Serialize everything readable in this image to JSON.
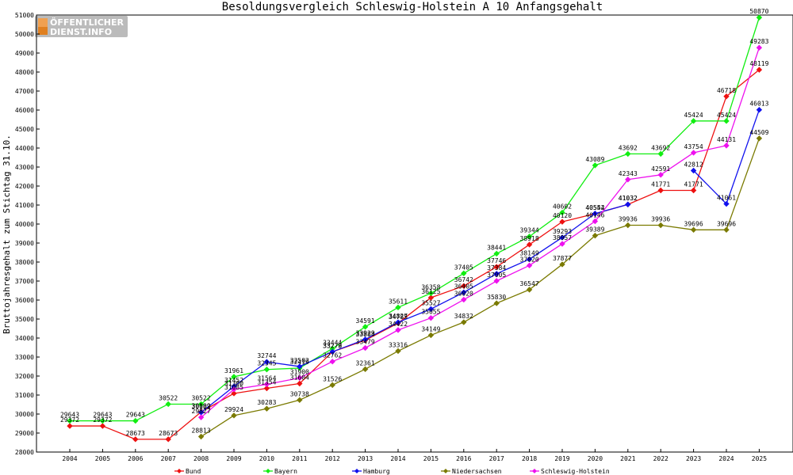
{
  "brand": {
    "line1": "ÖFFENTLICHER",
    "line2": "DIENST.INFO"
  },
  "chart_data": {
    "type": "line",
    "title": "Besoldungsvergleich Schleswig-Holstein A 10 Anfangsgehalt",
    "xlabel": "",
    "ylabel": "Bruttojahresgehalt zum Stichtag 31.10.",
    "ylim": [
      28000,
      51000
    ],
    "yticks": [
      28000,
      29000,
      30000,
      31000,
      32000,
      33000,
      34000,
      35000,
      36000,
      37000,
      38000,
      39000,
      40000,
      41000,
      42000,
      43000,
      44000,
      45000,
      46000,
      47000,
      48000,
      49000,
      50000,
      51000
    ],
    "x": [
      2004,
      2005,
      2006,
      2007,
      2008,
      2009,
      2010,
      2011,
      2012,
      2013,
      2014,
      2015,
      2016,
      2017,
      2018,
      2019,
      2020,
      2021,
      2022,
      2023,
      2024,
      2025
    ],
    "grid": false,
    "legend_position": "bottom",
    "series": [
      {
        "name": "Bund",
        "color": "#ee1111",
        "values": [
          29372,
          29372,
          28673,
          28673,
          30109,
          31085,
          31354,
          31604,
          33278,
          33884,
          34785,
          36125,
          36742,
          37746,
          38918,
          40120,
          40544,
          41032,
          41771,
          41771,
          46718,
          48119
        ]
      },
      {
        "name": "Bayern",
        "color": "#11ee11",
        "values": [
          29643,
          29643,
          29643,
          30522,
          30522,
          31961,
          32345,
          32419,
          33444,
          34591,
          35611,
          36358,
          37405,
          38441,
          39344,
          40602,
          43089,
          43692,
          43692,
          45424,
          45424,
          50870
        ]
      },
      {
        "name": "Hamburg",
        "color": "#1111ee",
        "values": [
          null,
          null,
          null,
          null,
          30082,
          31452,
          32744,
          32502,
          33279,
          33929,
          34827,
          35527,
          36405,
          37384,
          38149,
          39293,
          40552,
          41032,
          null,
          42812,
          41061,
          46013
        ]
      },
      {
        "name": "Niedersachsen",
        "color": "#7a7a00",
        "values": [
          null,
          null,
          null,
          null,
          28813,
          29924,
          30283,
          30738,
          31526,
          32361,
          33316,
          34149,
          34832,
          35830,
          36547,
          37877,
          39389,
          39936,
          39936,
          39696,
          39696,
          44509
        ]
      },
      {
        "name": "Schleswig-Holstein",
        "color": "#ee11ee",
        "values": [
          null,
          null,
          null,
          null,
          29827,
          31300,
          31564,
          31900,
          32762,
          33479,
          34422,
          35055,
          36020,
          37005,
          37820,
          38957,
          40146,
          42343,
          42591,
          43754,
          44131,
          49283
        ]
      }
    ]
  }
}
